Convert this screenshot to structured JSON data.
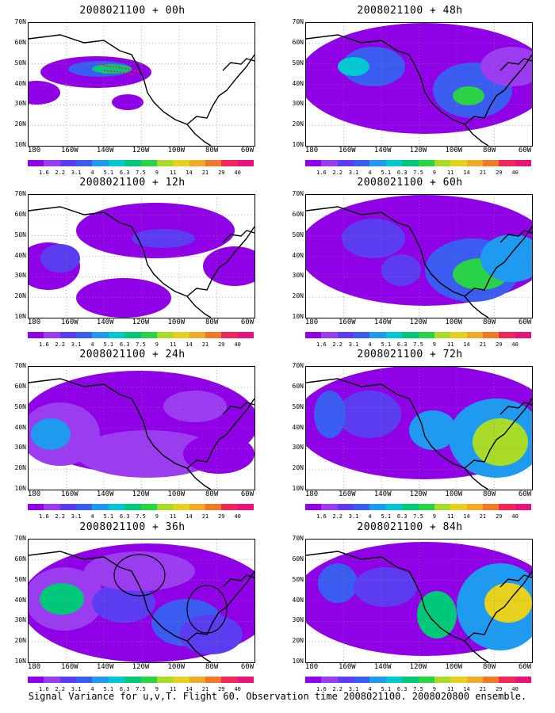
{
  "colorbar": {
    "labels": [
      "1.6",
      "2.2",
      "3.1",
      "4",
      "5.1",
      "6.3",
      "7.5",
      "9",
      "11",
      "14",
      "21",
      "29",
      "40"
    ],
    "colors": [
      "#8f00e6",
      "#9c3cf0",
      "#5c3cf0",
      "#3b5cf0",
      "#1e9bf0",
      "#00c8d2",
      "#00c87a",
      "#2ad246",
      "#a8dc28",
      "#e6d21e",
      "#f0aa28",
      "#f07828",
      "#f0285a",
      "#e6147a"
    ]
  },
  "y_labels": [
    "70N",
    "60N",
    "50N",
    "40N",
    "30N",
    "20N",
    "10N"
  ],
  "x_labels": [
    "180",
    "160W",
    "140W",
    "120W",
    "100W",
    "80W",
    "60W"
  ],
  "panels": [
    {
      "title": "2008021100 + 00h"
    },
    {
      "title": "2008021100 + 12h"
    },
    {
      "title": "2008021100 + 24h"
    },
    {
      "title": "2008021100 + 36h"
    },
    {
      "title": "2008021100 + 48h"
    },
    {
      "title": "2008021100 + 60h"
    },
    {
      "title": "2008021100 + 72h"
    },
    {
      "title": "2008021100 + 84h"
    }
  ],
  "caption": "Signal Variance for u,v,T. Flight 60. Observation time 2008021100. 2008020800 ensemble."
}
